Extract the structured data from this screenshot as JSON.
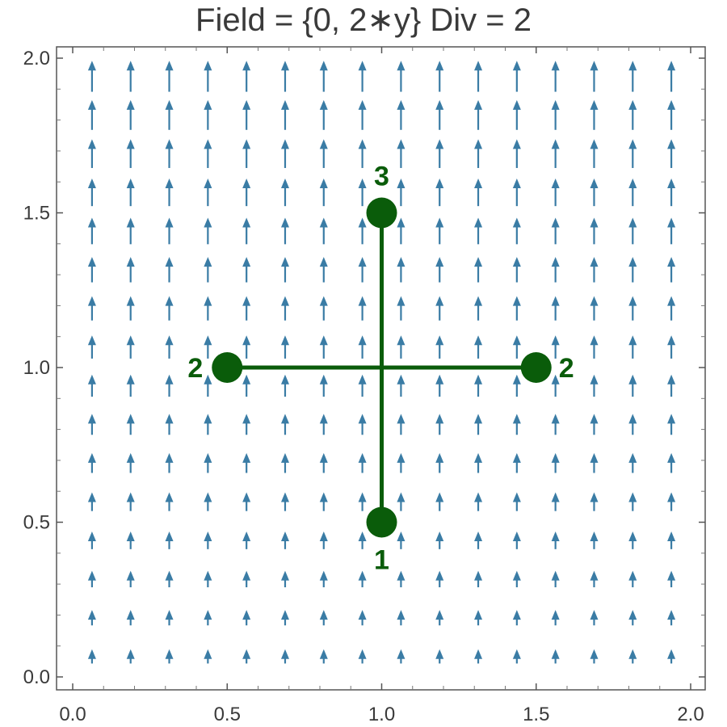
{
  "chart_data": {
    "type": "vector-field",
    "title": "Field = {0, 2∗y} Div = 2",
    "field": {
      "fx": "0",
      "fy": "2*y"
    },
    "xlim": [
      0,
      2
    ],
    "ylim": [
      0,
      2
    ],
    "x_ticks": [
      "0.0",
      "0.5",
      "1.0",
      "1.5",
      "2.0"
    ],
    "y_ticks": [
      "0.0",
      "0.5",
      "1.0",
      "1.5",
      "2.0"
    ],
    "grid": false,
    "arrow_color": "#3a7ca5",
    "path_color": "#0a5c0a",
    "points": [
      {
        "x": 1.0,
        "y": 0.5,
        "label": "1",
        "label_side": "below"
      },
      {
        "x": 1.0,
        "y": 1.5,
        "label": "3",
        "label_side": "above"
      },
      {
        "x": 0.5,
        "y": 1.0,
        "label": "2",
        "label_side": "left"
      },
      {
        "x": 1.5,
        "y": 1.0,
        "label": "2",
        "label_side": "right"
      }
    ],
    "segments": [
      {
        "from": [
          1.0,
          0.5
        ],
        "to": [
          1.0,
          1.5
        ]
      },
      {
        "from": [
          0.5,
          1.0
        ],
        "to": [
          1.5,
          1.0
        ]
      }
    ]
  }
}
